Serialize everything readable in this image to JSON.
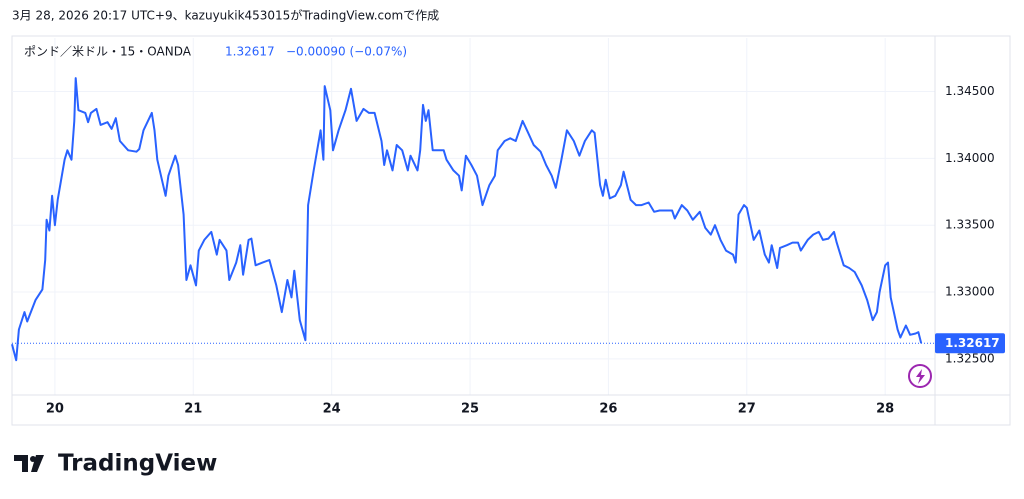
{
  "chart_data": {
    "type": "line",
    "caption": "3月 28, 2026 20:17 UTC+9、kazuyukik453015がTradingView.comで作成",
    "title": "ポンド／米ドル・15・OANDA",
    "change": "−0.00090 (−0.07%)",
    "last_price": 1.32617,
    "brand": "TradingView",
    "color": "#2962ff",
    "grid": true,
    "xlim": [
      -0.31,
      6.36
    ],
    "ylim": [
      1.3223,
      1.349
    ],
    "xticks": [
      {
        "value": 0,
        "label": "20"
      },
      {
        "value": 1,
        "label": "21"
      },
      {
        "value": 2,
        "label": "24"
      },
      {
        "value": 3,
        "label": "25"
      },
      {
        "value": 4,
        "label": "26"
      },
      {
        "value": 5,
        "label": "27"
      },
      {
        "value": 6,
        "label": "28"
      }
    ],
    "yticks": [
      {
        "value": 1.325,
        "label": "1.32500"
      },
      {
        "value": 1.33,
        "label": "1.33000"
      },
      {
        "value": 1.335,
        "label": "1.33500"
      },
      {
        "value": 1.34,
        "label": "1.34000"
      },
      {
        "value": 1.345,
        "label": "1.34500"
      }
    ],
    "x": [
      -0.31,
      -0.28,
      -0.26,
      -0.22,
      -0.2,
      -0.14,
      -0.09,
      -0.07,
      -0.06,
      -0.04,
      -0.02,
      0.0,
      0.02,
      0.07,
      0.09,
      0.12,
      0.14,
      0.15,
      0.17,
      0.22,
      0.24,
      0.26,
      0.3,
      0.33,
      0.38,
      0.41,
      0.44,
      0.47,
      0.53,
      0.59,
      0.61,
      0.64,
      0.7,
      0.72,
      0.74,
      0.8,
      0.82,
      0.87,
      0.89,
      0.93,
      0.95,
      0.98,
      1.02,
      1.04,
      1.08,
      1.13,
      1.17,
      1.19,
      1.24,
      1.26,
      1.31,
      1.34,
      1.36,
      1.4,
      1.42,
      1.45,
      1.5,
      1.55,
      1.6,
      1.64,
      1.68,
      1.71,
      1.73,
      1.77,
      1.81,
      1.83,
      1.87,
      1.92,
      1.94,
      1.95,
      1.99,
      2.01,
      2.05,
      2.1,
      2.14,
      2.18,
      2.23,
      2.27,
      2.31,
      2.36,
      2.38,
      2.4,
      2.44,
      2.47,
      2.51,
      2.55,
      2.57,
      2.62,
      2.64,
      2.66,
      2.68,
      2.7,
      2.73,
      2.77,
      2.81,
      2.83,
      2.88,
      2.92,
      2.94,
      2.97,
      3.01,
      3.05,
      3.09,
      3.14,
      3.18,
      3.2,
      3.25,
      3.29,
      3.33,
      3.38,
      3.42,
      3.46,
      3.51,
      3.55,
      3.59,
      3.62,
      3.66,
      3.7,
      3.75,
      3.79,
      3.83,
      3.88,
      3.9,
      3.94,
      3.96,
      3.98,
      4.01,
      4.05,
      4.09,
      4.11,
      4.16,
      4.2,
      4.24,
      4.29,
      4.33,
      4.37,
      4.42,
      4.46,
      4.48,
      4.53,
      4.57,
      4.61,
      4.66,
      4.7,
      4.74,
      4.77,
      4.81,
      4.85,
      4.9,
      4.92,
      4.94,
      4.98,
      5.0,
      5.05,
      5.09,
      5.13,
      5.16,
      5.18,
      5.22,
      5.24,
      5.29,
      5.33,
      5.37,
      5.39,
      5.44,
      5.48,
      5.52,
      5.55,
      5.59,
      5.63,
      5.65,
      5.7,
      5.74,
      5.78,
      5.83,
      5.87,
      5.91,
      5.94,
      5.96,
      6.0,
      6.02,
      6.04,
      6.09,
      6.11,
      6.15,
      6.18,
      6.22,
      6.24,
      6.26
    ],
    "values": [
      1.3261,
      1.3249,
      1.3272,
      1.3285,
      1.3278,
      1.3294,
      1.3302,
      1.3324,
      1.3354,
      1.3346,
      1.3372,
      1.335,
      1.3369,
      1.3399,
      1.3406,
      1.3399,
      1.3428,
      1.346,
      1.3436,
      1.3434,
      1.3427,
      1.3434,
      1.3437,
      1.3425,
      1.3427,
      1.3422,
      1.343,
      1.3413,
      1.3406,
      1.3405,
      1.3407,
      1.3421,
      1.3434,
      1.3421,
      1.3399,
      1.3372,
      1.3387,
      1.3402,
      1.3395,
      1.3358,
      1.3309,
      1.332,
      1.3305,
      1.3331,
      1.3339,
      1.3345,
      1.3328,
      1.3339,
      1.3331,
      1.3309,
      1.3322,
      1.3335,
      1.3313,
      1.3339,
      1.334,
      1.332,
      1.3322,
      1.3324,
      1.3305,
      1.3285,
      1.3309,
      1.3296,
      1.3316,
      1.3279,
      1.3264,
      1.3365,
      1.3391,
      1.3421,
      1.3399,
      1.3454,
      1.3436,
      1.3406,
      1.3421,
      1.3436,
      1.3452,
      1.3428,
      1.3437,
      1.3434,
      1.3434,
      1.3413,
      1.3395,
      1.3406,
      1.3391,
      1.341,
      1.3406,
      1.3391,
      1.3402,
      1.3391,
      1.3406,
      1.344,
      1.3428,
      1.3436,
      1.3406,
      1.3406,
      1.3406,
      1.3399,
      1.3391,
      1.3387,
      1.3376,
      1.3402,
      1.3395,
      1.3387,
      1.3365,
      1.338,
      1.3387,
      1.3406,
      1.3413,
      1.3415,
      1.3413,
      1.3428,
      1.3419,
      1.341,
      1.3405,
      1.3395,
      1.3387,
      1.3378,
      1.3399,
      1.3421,
      1.3413,
      1.3402,
      1.3413,
      1.3421,
      1.3419,
      1.338,
      1.3372,
      1.3384,
      1.337,
      1.3372,
      1.338,
      1.339,
      1.3369,
      1.3365,
      1.3365,
      1.3367,
      1.336,
      1.3361,
      1.3361,
      1.3361,
      1.3355,
      1.3365,
      1.3361,
      1.3354,
      1.336,
      1.3348,
      1.3343,
      1.335,
      1.3339,
      1.3331,
      1.3328,
      1.3322,
      1.3358,
      1.3365,
      1.3363,
      1.3339,
      1.3346,
      1.3328,
      1.3322,
      1.3335,
      1.3318,
      1.3333,
      1.3335,
      1.3337,
      1.3337,
      1.3331,
      1.3339,
      1.3343,
      1.3345,
      1.3339,
      1.334,
      1.3345,
      1.3337,
      1.332,
      1.3318,
      1.3315,
      1.3305,
      1.3294,
      1.3279,
      1.3285,
      1.33,
      1.332,
      1.3322,
      1.3296,
      1.3272,
      1.3266,
      1.3275,
      1.3268,
      1.3269,
      1.327,
      1.32617
    ]
  }
}
